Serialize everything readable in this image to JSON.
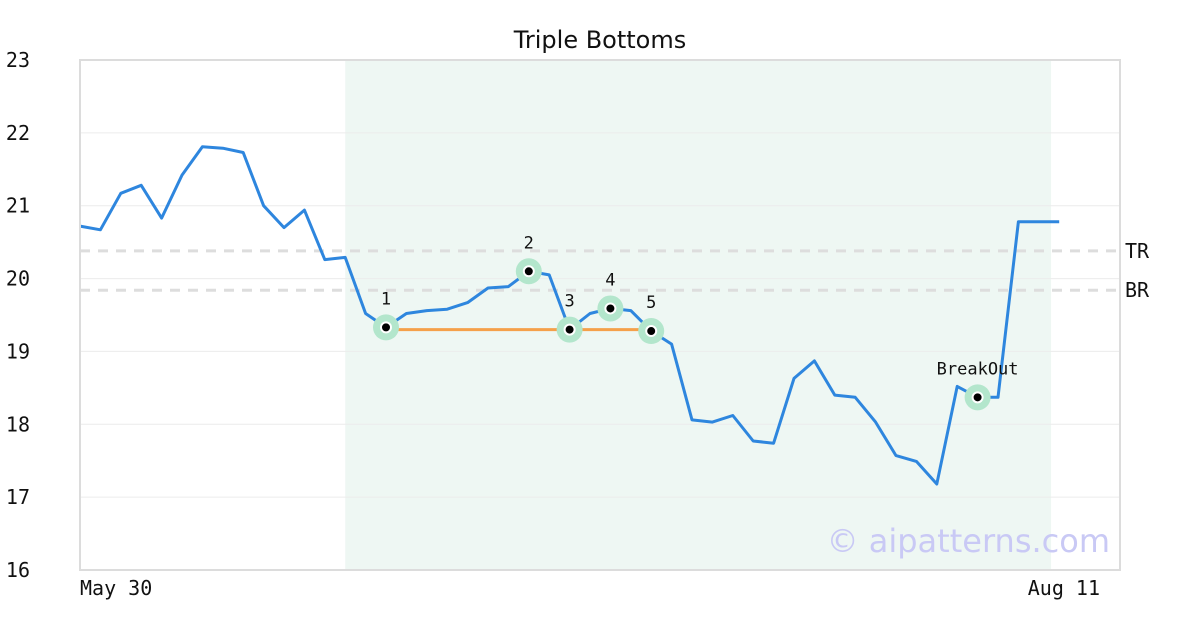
{
  "chart_data": {
    "type": "line",
    "title": "Triple Bottoms",
    "xlabel": "",
    "ylabel": "",
    "ylim": [
      16,
      23
    ],
    "y_ticks": [
      "16",
      "17",
      "18",
      "19",
      "20",
      "21",
      "22",
      "23"
    ],
    "x_tick_labels": [
      {
        "label": "May 30",
        "index": 0
      },
      {
        "label": "Aug 11",
        "index": 50
      }
    ],
    "grid": "horizontal",
    "colors": {
      "line": "#2e86de",
      "pattern_line": "#f5a04a",
      "highlight_region": "#eef7f3",
      "marker_ring": "#b3e6cc",
      "reference_line": "#dddddd",
      "watermark": "#c9c9f5"
    },
    "series": [
      {
        "values": [
          20.72,
          20.67,
          21.17,
          21.28,
          20.83,
          21.42,
          21.81,
          21.79,
          21.73,
          21.0,
          20.7,
          20.94,
          20.26,
          20.29,
          19.52,
          19.33,
          19.52,
          19.56,
          19.58,
          19.67,
          19.87,
          19.89,
          20.1,
          20.05,
          19.3,
          19.52,
          19.59,
          19.56,
          19.28,
          19.1,
          18.06,
          18.03,
          18.12,
          17.77,
          17.74,
          18.63,
          18.87,
          18.4,
          18.37,
          18.03,
          17.57,
          17.49,
          17.18,
          18.52,
          18.37,
          18.37,
          20.78,
          20.78,
          20.78
        ]
      }
    ],
    "highlight_region": {
      "start_index": 13,
      "end_index": 47.6
    },
    "pattern_line": {
      "start_index": 15,
      "end_index": 28,
      "value": 19.3
    },
    "reference_lines": [
      {
        "label": "TR",
        "value": 20.38
      },
      {
        "label": "BR",
        "value": 19.84
      }
    ],
    "annotations": [
      {
        "label": "1",
        "index": 15,
        "value": 19.33
      },
      {
        "label": "2",
        "index": 22,
        "value": 20.1
      },
      {
        "label": "3",
        "index": 24,
        "value": 19.3
      },
      {
        "label": "4",
        "index": 26,
        "value": 19.59
      },
      {
        "label": "5",
        "index": 28,
        "value": 19.28
      },
      {
        "label": "BreakOut",
        "index": 44,
        "value": 18.37
      }
    ],
    "watermark": "© aipatterns.com"
  }
}
